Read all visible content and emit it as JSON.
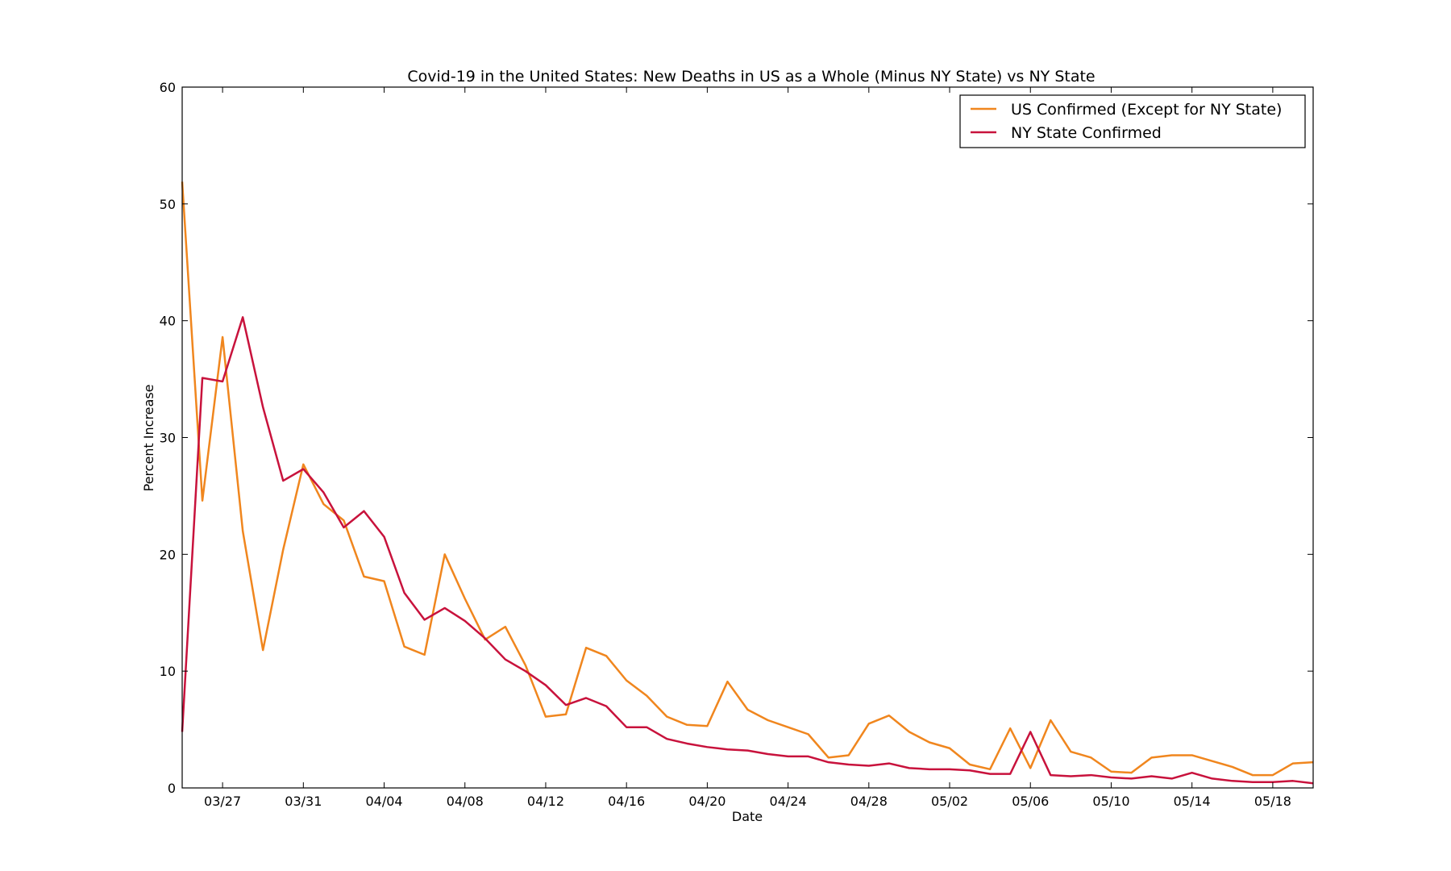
{
  "chart_data": {
    "type": "line",
    "title": "Covid-19 in the United States: New Deaths in US as a Whole (Minus NY State) vs NY State",
    "xlabel": "Date",
    "ylabel": "Percent Increase",
    "ylim": [
      0,
      60
    ],
    "yticks": [
      0,
      10,
      20,
      30,
      40,
      50,
      60
    ],
    "xlim": [
      "03/25",
      "05/20"
    ],
    "xticks": [
      "03/27",
      "03/31",
      "04/04",
      "04/08",
      "04/12",
      "04/16",
      "04/20",
      "04/24",
      "04/28",
      "05/02",
      "05/06",
      "05/10",
      "05/14",
      "05/18"
    ],
    "x": [
      "03/25",
      "03/26",
      "03/27",
      "03/28",
      "03/29",
      "03/30",
      "03/31",
      "04/01",
      "04/02",
      "04/03",
      "04/04",
      "04/05",
      "04/06",
      "04/07",
      "04/08",
      "04/09",
      "04/10",
      "04/11",
      "04/12",
      "04/13",
      "04/14",
      "04/15",
      "04/16",
      "04/17",
      "04/18",
      "04/19",
      "04/20",
      "04/21",
      "04/22",
      "04/23",
      "04/24",
      "04/25",
      "04/26",
      "04/27",
      "04/28",
      "04/29",
      "04/30",
      "05/01",
      "05/02",
      "05/03",
      "05/04",
      "05/05",
      "05/06",
      "05/07",
      "05/08",
      "05/09",
      "05/10",
      "05/11",
      "05/12",
      "05/13",
      "05/14",
      "05/15",
      "05/16",
      "05/17",
      "05/18",
      "05/19",
      "05/20"
    ],
    "series": [
      {
        "name": "US Confirmed (Except for NY State)",
        "color": "#f0861e",
        "values": [
          51.9,
          24.6,
          38.6,
          22.0,
          11.8,
          20.4,
          27.7,
          24.3,
          22.9,
          18.1,
          17.7,
          12.1,
          11.4,
          20.0,
          16.2,
          12.7,
          13.8,
          10.5,
          6.1,
          6.3,
          12.0,
          11.3,
          9.2,
          7.9,
          6.1,
          5.4,
          5.3,
          9.1,
          6.7,
          5.8,
          5.2,
          4.6,
          2.6,
          2.8,
          5.5,
          6.2,
          4.8,
          3.9,
          3.4,
          2.0,
          1.6,
          5.1,
          1.7,
          5.8,
          3.1,
          2.6,
          1.4,
          1.3,
          2.6,
          2.8,
          2.8,
          2.3,
          1.8,
          1.1,
          1.1,
          2.1,
          2.2
        ]
      },
      {
        "name": "NY State Confirmed",
        "color": "#c8123c",
        "values": [
          4.8,
          35.1,
          34.8,
          40.3,
          32.6,
          26.3,
          27.3,
          25.3,
          22.3,
          23.7,
          21.5,
          16.7,
          14.4,
          15.4,
          14.3,
          12.8,
          11.0,
          10.0,
          8.8,
          7.1,
          7.7,
          7.0,
          5.2,
          5.2,
          4.2,
          3.8,
          3.5,
          3.3,
          3.2,
          2.9,
          2.7,
          2.7,
          2.2,
          2.0,
          1.9,
          2.1,
          1.7,
          1.6,
          1.6,
          1.5,
          1.2,
          1.2,
          4.8,
          1.1,
          1.0,
          1.1,
          0.9,
          0.8,
          1.0,
          0.8,
          1.3,
          0.8,
          0.6,
          0.5,
          0.5,
          0.6,
          0.4
        ]
      }
    ],
    "legend_position": "top-right",
    "grid": false
  }
}
